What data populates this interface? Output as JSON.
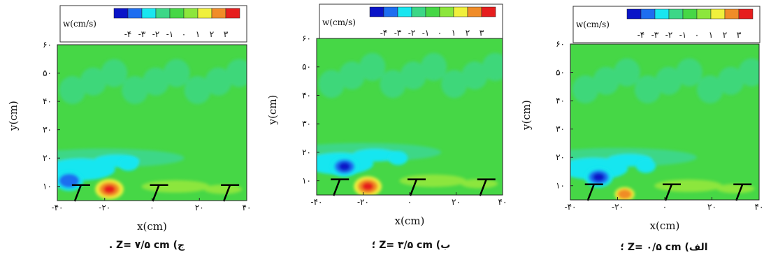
{
  "colorbar": {
    "label": "w(cm/s)",
    "colors": [
      "#0a14c8",
      "#1e6ef0",
      "#19e6f0",
      "#3cd787",
      "#46d746",
      "#8ce63c",
      "#f0f03c",
      "#f08c28",
      "#e61e1e"
    ],
    "tick_labels": [
      "-۴",
      "-۳",
      "-۲",
      "-۱",
      "۰",
      "۱",
      "۲",
      "۳"
    ]
  },
  "chart_data": [
    {
      "type": "heatmap",
      "caption": "ج) Z= ۷/۵ cm .",
      "xlabel": "x(cm)",
      "ylabel": "y(cm)",
      "xlim": [
        -40,
        40
      ],
      "ylim": [
        5,
        60
      ],
      "x_tick_labels": [
        "-۴۰",
        "-۲۰",
        "۰",
        "۲۰",
        "۴۰"
      ],
      "x_ticks": [
        -40,
        -20,
        0,
        20,
        40
      ],
      "y_tick_labels": [
        "۱۰",
        "۲۰",
        "۳۰",
        "۴۰",
        "۵۰",
        "۶۰"
      ],
      "y_ticks": [
        10,
        20,
        30,
        40,
        50,
        60
      ],
      "grid": false,
      "features": [
        {
          "kind": "low",
          "x": -35,
          "y": 12,
          "w": -3
        },
        {
          "kind": "high",
          "x": -18,
          "y": 9,
          "w": 3
        },
        {
          "kind": "low",
          "x": -10,
          "y": 18,
          "w": -1
        }
      ]
    },
    {
      "type": "heatmap",
      "caption": "ب) Z= ۳/۵ cm ؛",
      "xlabel": "x(cm)",
      "ylabel": "y(cm)",
      "xlim": [
        -40,
        40
      ],
      "ylim": [
        5,
        60
      ],
      "x_tick_labels": [
        "-۴۰",
        "-۲۰",
        "۰",
        "۲۰",
        "۴۰"
      ],
      "x_ticks": [
        -40,
        -20,
        0,
        20,
        40
      ],
      "y_tick_labels": [
        "۱۰",
        "۲۰",
        "۳۰",
        "۴۰",
        "۵۰",
        "۶۰"
      ],
      "y_ticks": [
        10,
        20,
        30,
        40,
        50,
        60
      ],
      "grid": false,
      "features": [
        {
          "kind": "low",
          "x": -28,
          "y": 15,
          "w": -4
        },
        {
          "kind": "high",
          "x": -18,
          "y": 8,
          "w": 3
        },
        {
          "kind": "low",
          "x": -5,
          "y": 18,
          "w": -1
        }
      ]
    },
    {
      "type": "heatmap",
      "caption": "الف) Z= ۰/۵ cm ؛",
      "xlabel": "x(cm)",
      "ylabel": "y(cm)",
      "xlim": [
        -40,
        40
      ],
      "ylim": [
        5,
        60
      ],
      "x_tick_labels": [
        "-۴۰",
        "-۲۰",
        "۰",
        "۲۰",
        "۴۰"
      ],
      "x_ticks": [
        -40,
        -20,
        0,
        20,
        40
      ],
      "y_tick_labels": [
        "۱۰",
        "۲۰",
        "۳۰",
        "۴۰",
        "۵۰",
        "۶۰"
      ],
      "y_ticks": [
        10,
        20,
        30,
        40,
        50,
        60
      ],
      "grid": false,
      "features": [
        {
          "kind": "low",
          "x": -28,
          "y": 13,
          "w": -4
        },
        {
          "kind": "high",
          "x": -17,
          "y": 7,
          "w": 2
        },
        {
          "kind": "low",
          "x": -8,
          "y": 17,
          "w": -1
        }
      ]
    }
  ]
}
